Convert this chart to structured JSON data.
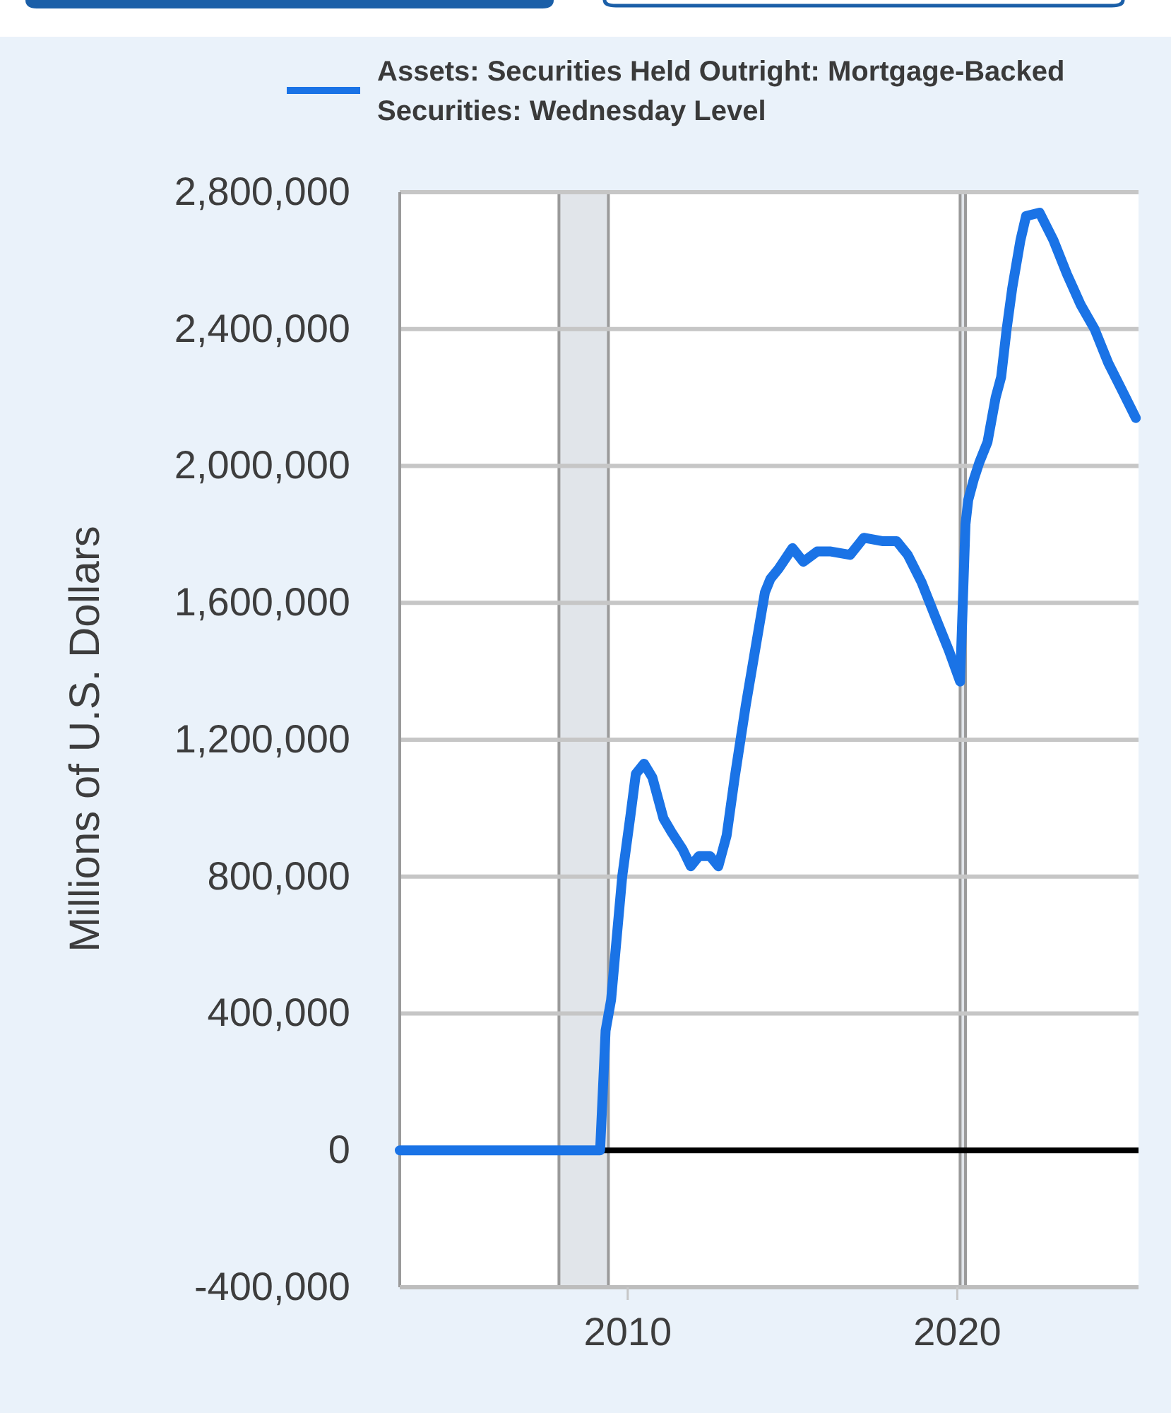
{
  "chart_data": {
    "type": "line",
    "x": [
      "2003-02",
      "2009-03",
      "2009-05",
      "2009-07",
      "2009-11",
      "2010-02",
      "2010-04",
      "2010-07",
      "2010-10",
      "2011-02",
      "2011-05",
      "2011-09",
      "2011-12",
      "2012-03",
      "2012-07",
      "2012-10",
      "2013-01",
      "2013-04",
      "2013-08",
      "2013-12",
      "2014-03",
      "2014-05",
      "2014-08",
      "2015-01",
      "2015-05",
      "2015-10",
      "2016-03",
      "2016-10",
      "2017-03",
      "2017-10",
      "2018-03",
      "2018-07",
      "2018-12",
      "2019-05",
      "2019-10",
      "2020-02",
      "2020-04",
      "2020-05",
      "2020-07",
      "2020-09",
      "2020-12",
      "2021-03",
      "2021-05",
      "2021-07",
      "2021-09",
      "2021-12",
      "2022-02",
      "2022-07",
      "2022-12",
      "2023-05",
      "2023-10",
      "2024-03",
      "2024-08",
      "2025-01",
      "2025-06"
    ],
    "series": [
      {
        "name": "Assets: Securities Held Outright: Mortgage-Backed Securities: Wednesday Level",
        "color": "#1a73e6",
        "values": [
          0,
          0,
          350000,
          440000,
          800000,
          980000,
          1100000,
          1130000,
          1090000,
          970000,
          930000,
          880000,
          830000,
          860000,
          860000,
          830000,
          920000,
          1090000,
          1300000,
          1490000,
          1630000,
          1670000,
          1700000,
          1760000,
          1720000,
          1750000,
          1750000,
          1740000,
          1790000,
          1780000,
          1780000,
          1740000,
          1660000,
          1560000,
          1460000,
          1370000,
          1830000,
          1900000,
          1960000,
          2010000,
          2070000,
          2200000,
          2260000,
          2400000,
          2520000,
          2660000,
          2730000,
          2740000,
          2660000,
          2560000,
          2470000,
          2400000,
          2300000,
          2220000,
          2140000
        ]
      }
    ],
    "ylabel": "Millions of U.S. Dollars",
    "xlim": [
      "2003-02",
      "2025-07"
    ],
    "xticks": [
      "2010",
      "2020"
    ],
    "ylim": [
      -400000,
      2800000
    ],
    "yticks": [
      {
        "value": -400000,
        "label": "-400,000"
      },
      {
        "value": 0,
        "label": "0"
      },
      {
        "value": 400000,
        "label": "400,000"
      },
      {
        "value": 800000,
        "label": "800,000"
      },
      {
        "value": 1200000,
        "label": "1,200,000"
      },
      {
        "value": 1600000,
        "label": "1,600,000"
      },
      {
        "value": 2000000,
        "label": "2,000,000"
      },
      {
        "value": 2400000,
        "label": "2,400,000"
      },
      {
        "value": 2800000,
        "label": "2,800,000"
      }
    ],
    "grid": "y",
    "legend": "top",
    "ref_lines": [
      {
        "axis": "y",
        "value": 0,
        "color": "#000000"
      }
    ],
    "bands": [
      {
        "axis": "x",
        "from": "2007-12",
        "to": "2009-06",
        "color": "#e1e5ea"
      },
      {
        "axis": "x",
        "from": "2020-02",
        "to": "2020-04",
        "color": "#e1e5ea"
      }
    ]
  }
}
